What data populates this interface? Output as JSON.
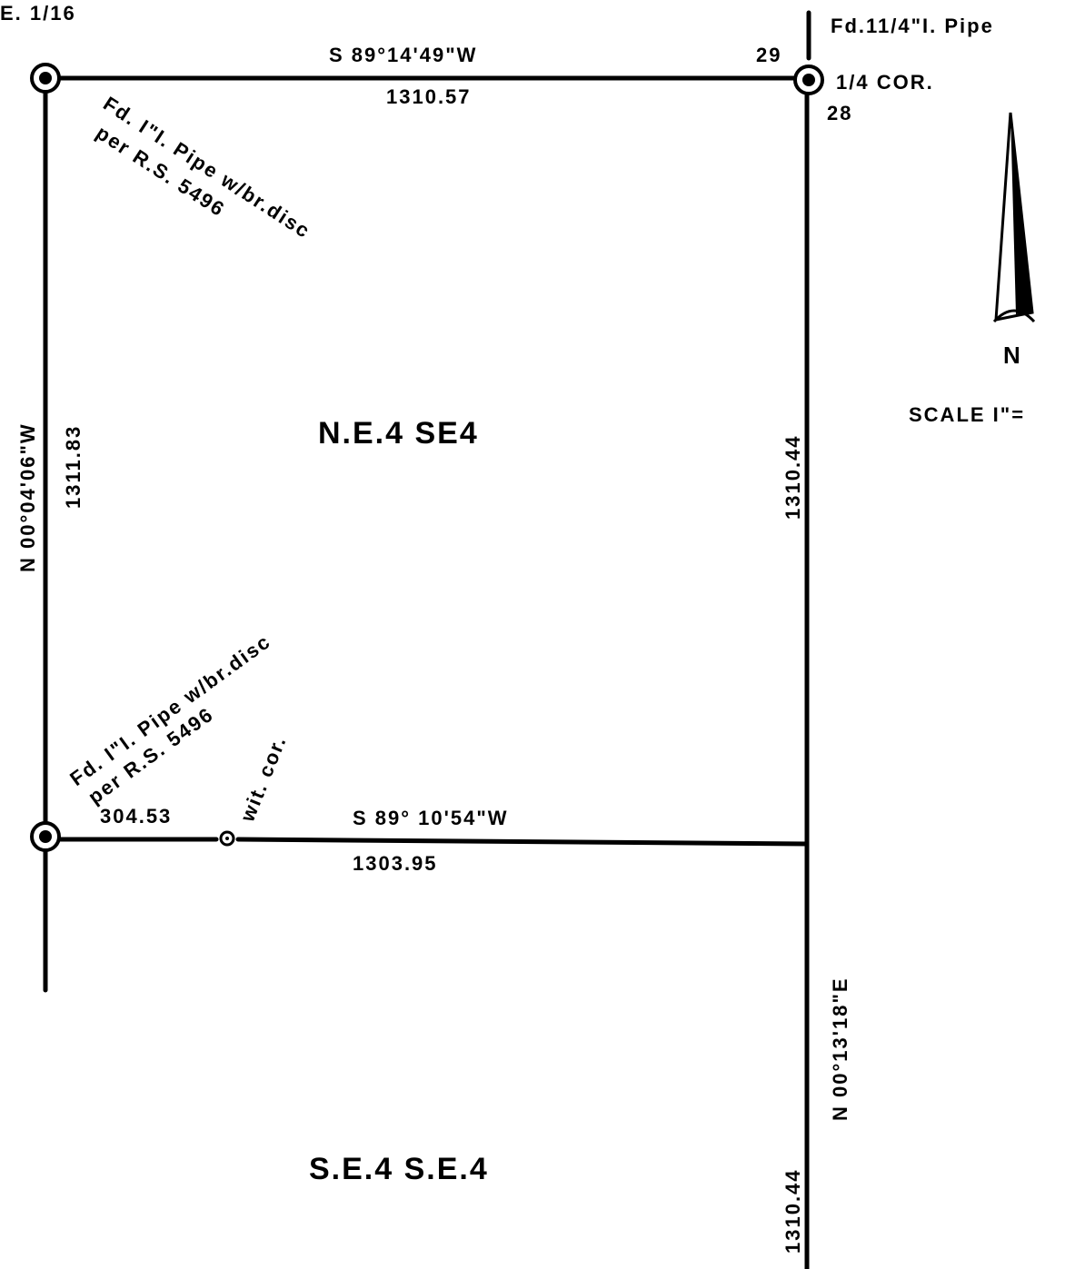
{
  "labels": {
    "top_left_corner": "E. 1/16",
    "top_right_note": "Fd.11/4\"I. Pipe",
    "section_29": "29",
    "section_28": "28",
    "quarter_corner": "1/4 COR.",
    "north_bearing": "S 89°14'49\"W",
    "north_distance": "1310.57",
    "nw_note_line1": "Fd. I\"I. Pipe w/br.disc",
    "nw_note_line2": "per R.S. 5496",
    "west_bearing": "N 00°04'06\"W",
    "west_distance": "1311.83",
    "east_distance_upper": "1310.44",
    "parcel_upper": "N.E.4  SE4",
    "parcel_lower": "S.E.4  S.E.4",
    "sw_note_line1": "Fd. I\"I. Pipe w/br.disc",
    "sw_note_line2": "per R.S. 5496",
    "witness_corner": "wit. cor.",
    "south_partial_distance": "304.53",
    "south_bearing": "S 89° 10'54\"W",
    "south_distance": "1303.95",
    "east_bearing_lower": "N 00°13'18\"E",
    "east_distance_lower": "1310.44",
    "north_arrow_letter": "N",
    "scale_label": "SCALE I\"="
  }
}
